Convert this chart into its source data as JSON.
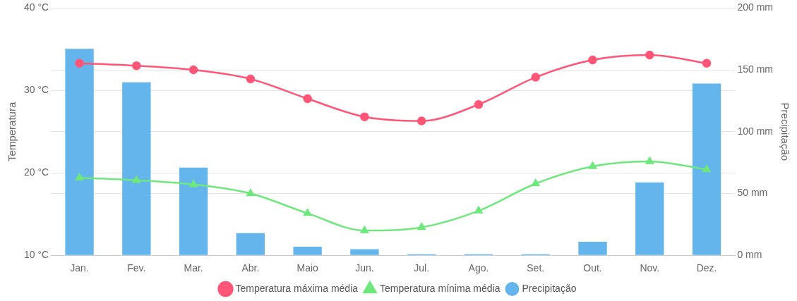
{
  "chart_data": {
    "type": "line",
    "ylabel": "Temperatura",
    "y2label": "Precipitação",
    "categories": [
      "Jan.",
      "Fev.",
      "Mar.",
      "Abr.",
      "Maio",
      "Jun.",
      "Jul.",
      "Ago.",
      "Set.",
      "Out.",
      "Nov.",
      "Dez."
    ],
    "series": [
      {
        "name": "Temperatura máxima média",
        "color": "#ff5577",
        "marker": "circle",
        "values": [
          33.3,
          33.0,
          32.5,
          31.4,
          29.0,
          26.8,
          26.3,
          28.3,
          31.6,
          33.7,
          34.3,
          33.3
        ]
      },
      {
        "name": "Temperatura mínima média",
        "color": "#6ee87c",
        "marker": "triangle",
        "values": [
          19.4,
          19.1,
          18.6,
          17.5,
          15.1,
          13.0,
          13.4,
          15.4,
          18.7,
          20.8,
          21.4,
          20.4
        ]
      },
      {
        "name": "Precipitação",
        "type": "bar",
        "axis": "y2",
        "color": "#63b5ec",
        "values": [
          167,
          140,
          71,
          18,
          7,
          5,
          1,
          1,
          1,
          11,
          59,
          139
        ]
      }
    ],
    "ylim": [
      10,
      40
    ],
    "yticks": [
      {
        "value": 10,
        "label": "10 °C"
      },
      {
        "value": 20,
        "label": "20 °C"
      },
      {
        "value": 30,
        "label": "30 °C"
      },
      {
        "value": 40,
        "label": "40 °C"
      }
    ],
    "y2lim": [
      0,
      200
    ],
    "y2ticks": [
      {
        "value": 0,
        "label": "0 mm"
      },
      {
        "value": 50,
        "label": "50 mm"
      },
      {
        "value": 100,
        "label": "100 mm"
      },
      {
        "value": 150,
        "label": "150 mm"
      },
      {
        "value": 200,
        "label": "200 mm"
      }
    ],
    "grid": "y",
    "legend": "bottom"
  }
}
